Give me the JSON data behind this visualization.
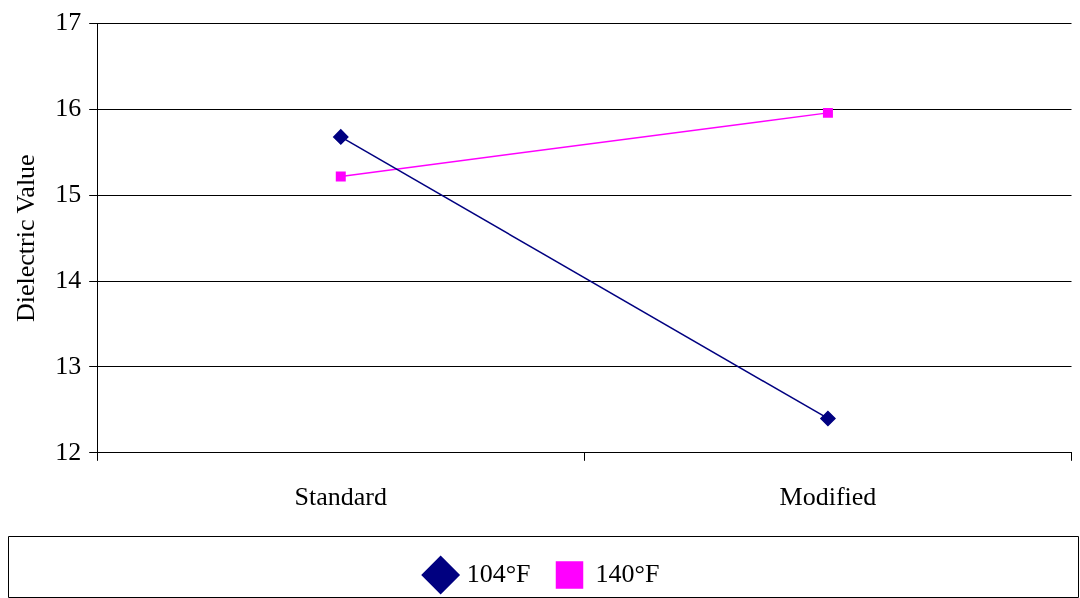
{
  "chart_data": {
    "type": "line",
    "ylabel": "Dielectric Value",
    "categories": [
      "Standard",
      "Modified"
    ],
    "series": [
      {
        "name": "104°F",
        "color": "#000080",
        "marker": "diamond",
        "values": [
          15.68,
          12.4
        ]
      },
      {
        "name": "140°F",
        "color": "#ff00ff",
        "marker": "square",
        "values": [
          15.22,
          15.96
        ]
      }
    ],
    "ylim": [
      12,
      17
    ],
    "yticks": [
      12,
      13,
      14,
      15,
      16,
      17
    ],
    "grid": "y",
    "legend": "bottom",
    "line_style": "solid"
  }
}
